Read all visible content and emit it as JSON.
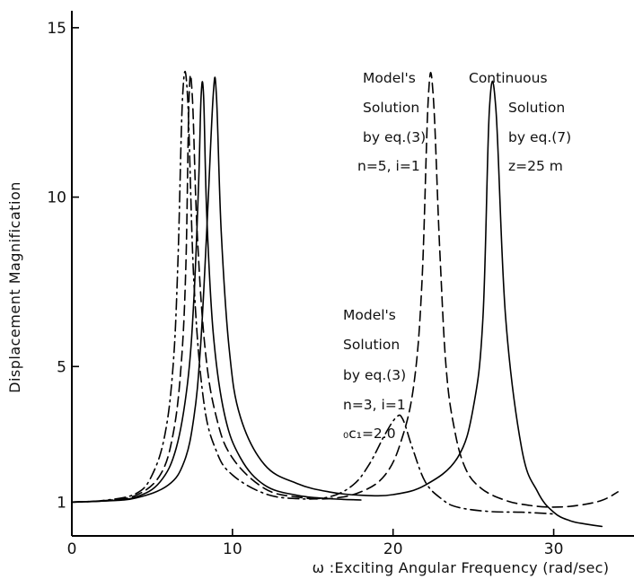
{
  "chart_data": {
    "type": "line",
    "xlabel": "ω :Exciting Angular Frequency (rad/sec)",
    "ylabel": "Displacement Magnification",
    "xlim": [
      0,
      35
    ],
    "ylim": [
      0,
      15.5
    ],
    "x_ticks": [
      {
        "value": 0,
        "label": "0"
      },
      {
        "value": 10,
        "label": "10"
      },
      {
        "value": 20,
        "label": "20"
      },
      {
        "value": 30,
        "label": "30"
      }
    ],
    "y_ticks": [
      {
        "value": 1,
        "label": "1"
      },
      {
        "value": 5,
        "label": "5"
      },
      {
        "value": 10,
        "label": "10"
      },
      {
        "value": 15,
        "label": "15"
      }
    ],
    "grid": false,
    "legend": "none",
    "series": [
      {
        "style": "solid",
        "x": [
          0,
          2,
          4,
          6,
          7,
          7.6,
          8.0,
          8.4,
          8.8,
          9.0,
          9.3,
          9.8,
          10.5,
          12,
          14,
          16,
          18,
          20,
          22,
          24,
          25,
          25.6,
          26.0,
          26.4,
          27,
          28,
          29,
          30,
          31,
          32,
          33
        ],
        "y": [
          1.0,
          1.03,
          1.12,
          1.5,
          2.2,
          3.5,
          5.5,
          9.0,
          13.0,
          13.0,
          9.0,
          5.5,
          3.5,
          2.1,
          1.55,
          1.3,
          1.2,
          1.22,
          1.5,
          2.3,
          3.8,
          6.5,
          12.6,
          12.6,
          6.5,
          2.6,
          1.3,
          0.7,
          0.45,
          0.35,
          0.28
        ]
      },
      {
        "style": "solid",
        "x": [
          0,
          2,
          4,
          5.5,
          6.5,
          7.2,
          7.6,
          7.9,
          8.05,
          8.2,
          8.4,
          8.8,
          9.5,
          10.5,
          12,
          14,
          16,
          18
        ],
        "y": [
          1.0,
          1.03,
          1.15,
          1.6,
          2.6,
          4.5,
          7.0,
          10.5,
          13.0,
          13.0,
          9.5,
          6.0,
          3.6,
          2.3,
          1.5,
          1.2,
          1.1,
          1.06
        ]
      },
      {
        "style": "dashed",
        "x": [
          0,
          2,
          4,
          5.5,
          6.3,
          6.8,
          7.1,
          7.3,
          7.5,
          7.8,
          8.3,
          9.0,
          10,
          12,
          14,
          16,
          18,
          19.5,
          20.5,
          21.3,
          21.8,
          22.2,
          22.5,
          22.9,
          23.3,
          23.8,
          24.5,
          25.5,
          27,
          28.5,
          30,
          31.5,
          33,
          34
        ],
        "y": [
          1.0,
          1.04,
          1.2,
          1.8,
          3.0,
          5.0,
          8.0,
          13.0,
          13.0,
          9.0,
          5.5,
          3.5,
          2.3,
          1.4,
          1.15,
          1.1,
          1.3,
          1.8,
          2.8,
          4.5,
          7.5,
          13.0,
          13.0,
          8.5,
          5.0,
          3.2,
          2.0,
          1.4,
          1.05,
          0.9,
          0.85,
          0.9,
          1.05,
          1.3
        ]
      },
      {
        "style": "dash-dot",
        "x": [
          0,
          2,
          4,
          5.0,
          5.8,
          6.3,
          6.6,
          6.9,
          7.2,
          7.6,
          8.2,
          9.0,
          10,
          12,
          14,
          16,
          17.5,
          18.5,
          19.5,
          20.2,
          20.6,
          21.2,
          22,
          23,
          24,
          26,
          28,
          30
        ],
        "y": [
          1.0,
          1.05,
          1.25,
          1.8,
          3.0,
          5.0,
          8.0,
          13.0,
          13.0,
          7.5,
          4.0,
          2.5,
          1.8,
          1.25,
          1.1,
          1.15,
          1.5,
          2.1,
          3.0,
          3.5,
          3.45,
          2.6,
          1.6,
          1.1,
          0.85,
          0.72,
          0.7,
          0.65
        ]
      }
    ],
    "annotations": [
      {
        "lines": [
          "Model's",
          "Solution",
          "by eq.(3)",
          "n=5, i=1"
        ]
      },
      {
        "lines": [
          "Continuous",
          "Solution",
          "by eq.(7)",
          "z=25 m"
        ]
      },
      {
        "lines": [
          "Model's",
          "Solution",
          "by eq.(3)",
          "n=3, i=1",
          "₀c₁=2.0"
        ]
      }
    ]
  }
}
